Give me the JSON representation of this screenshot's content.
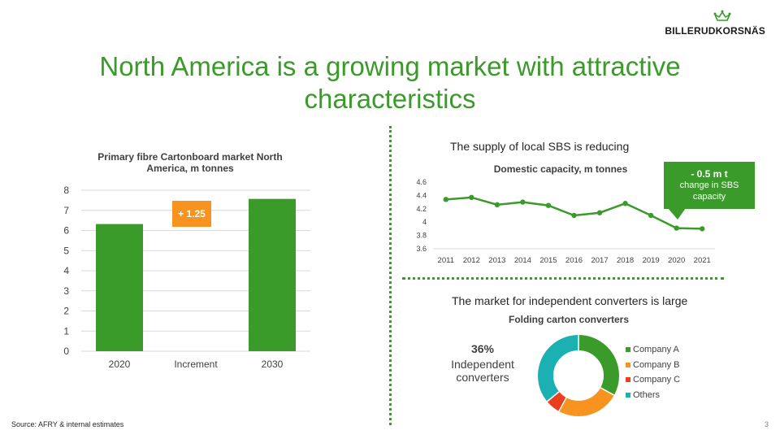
{
  "logo": {
    "text": "BILLERUDKORSNÄS",
    "icon": "crown-icon"
  },
  "title": "North America is a growing market with attractive characteristics",
  "footer": {
    "source": "Source: AFRY & internal estimates",
    "page_number": "3"
  },
  "section_supply": "The supply of local SBS is reducing",
  "section_market": "The market for independent converters is large",
  "colors": {
    "green": "#3a9b2a",
    "orange": "#f7931e",
    "red": "#e8401c",
    "teal": "#1bb0b2"
  },
  "chart_data": [
    {
      "type": "bar",
      "title": "Primary fibre Cartonboard market North America, m tonnes",
      "categories": [
        "2020",
        "Increment",
        "2030"
      ],
      "values": [
        6.32,
        1.25,
        7.57
      ],
      "increment_label": "+ 1.25",
      "ylim": [
        0,
        8
      ],
      "yticks": [
        "0",
        "1",
        "2",
        "3",
        "4",
        "5",
        "6",
        "7",
        "8"
      ],
      "xlabel": "",
      "ylabel": ""
    },
    {
      "type": "line",
      "title": "Domestic capacity, m tonnes",
      "x": [
        "2011",
        "2012",
        "2013",
        "2014",
        "2015",
        "2016",
        "2017",
        "2018",
        "2019",
        "2020",
        "2021"
      ],
      "values": [
        4.34,
        4.37,
        4.26,
        4.3,
        4.25,
        4.1,
        4.14,
        4.28,
        4.1,
        3.91,
        3.9
      ],
      "ylim": [
        3.6,
        4.6
      ],
      "yticks": [
        "3.6",
        "3.8",
        "4",
        "4.2",
        "4.4",
        "4.6"
      ],
      "callout": {
        "value": "- 0.5 m t",
        "text": "change in SBS capacity"
      }
    },
    {
      "type": "pie",
      "title": "Folding carton converters",
      "labels": [
        "Company A",
        "Company B",
        "Company C",
        "Others"
      ],
      "values": [
        33,
        25,
        6,
        36
      ],
      "colors": [
        "#3a9b2a",
        "#f7931e",
        "#e8401c",
        "#1bb0b2"
      ],
      "highlight": {
        "value": "36%",
        "label": "Independent converters"
      }
    }
  ]
}
